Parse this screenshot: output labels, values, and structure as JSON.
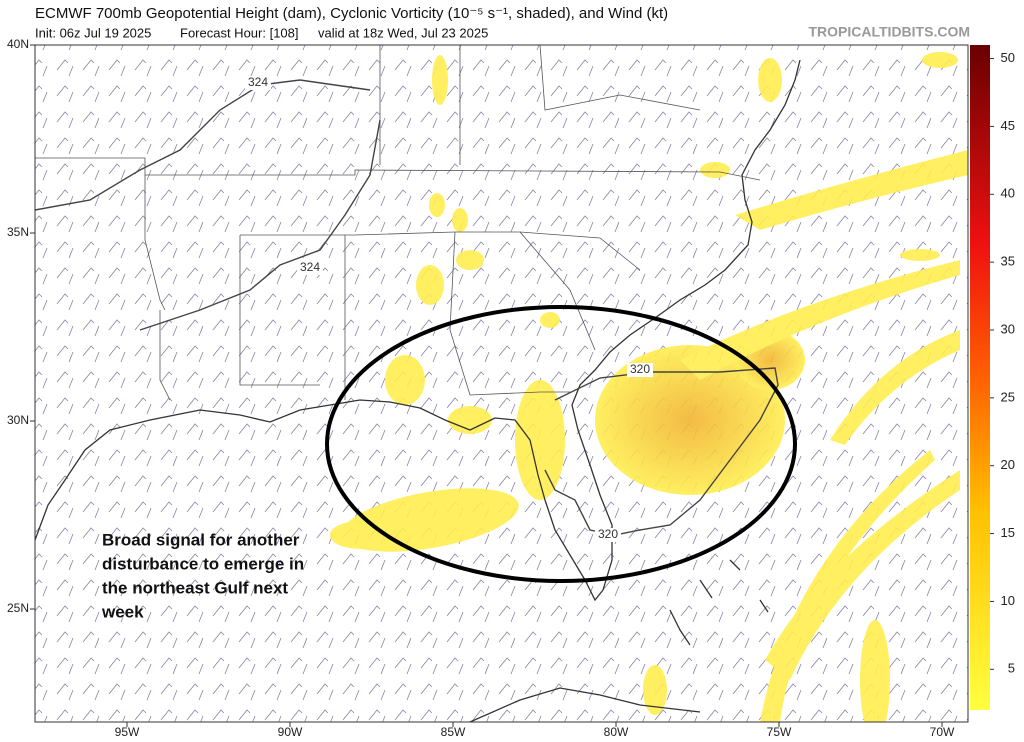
{
  "header": {
    "title": "ECMWF 700mb Geopotential Height (dam), Cyclonic Vorticity (10⁻⁵ s⁻¹, shaded), and Wind (kt)",
    "init": "Init: 06z Jul 19 2025",
    "forecast_hour": "Forecast Hour: [108]",
    "valid": "valid at 18z Wed, Jul 23 2025",
    "site": "TROPICALTIDBITS.COM"
  },
  "map": {
    "lat_ticks": [
      {
        "value": 40,
        "label": "40N"
      },
      {
        "value": 35,
        "label": "35N"
      },
      {
        "value": 30,
        "label": "30N"
      },
      {
        "value": 25,
        "label": "25N"
      }
    ],
    "lon_ticks": [
      {
        "value": -95,
        "label": "95W"
      },
      {
        "value": -90,
        "label": "90W"
      },
      {
        "value": -85,
        "label": "85W"
      },
      {
        "value": -80,
        "label": "80W"
      },
      {
        "value": -75,
        "label": "75W"
      },
      {
        "value": -70,
        "label": "70W"
      }
    ],
    "contour_labels": [
      324,
      324,
      320,
      320
    ],
    "annotation": [
      "Broad signal for another",
      "disturbance to emerge in",
      "the northeast Gulf next",
      "week"
    ]
  },
  "colorbar": {
    "range": [
      2,
      51
    ],
    "ticks": [
      5,
      10,
      15,
      20,
      25,
      30,
      35,
      40,
      45,
      50
    ]
  }
}
